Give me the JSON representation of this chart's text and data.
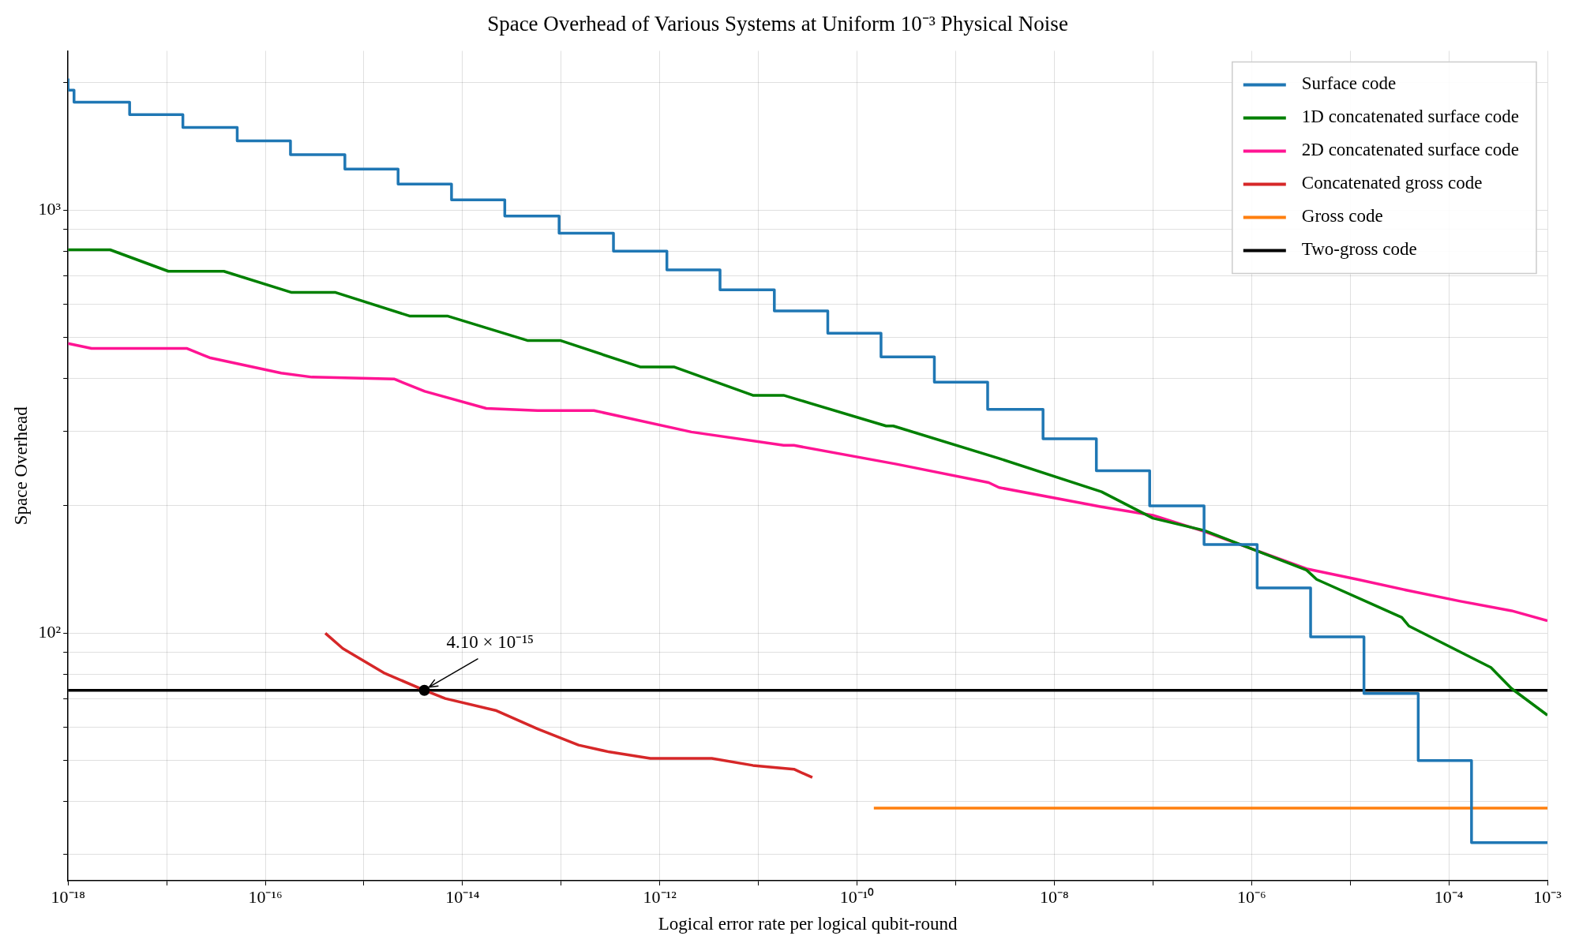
{
  "chart_data": {
    "type": "line",
    "title": "Space Overhead of Various Systems at Uniform 10⁻³ Physical Noise",
    "xlabel": "Logical error rate per logical qubit-round",
    "ylabel": "Space Overhead",
    "log": "xy",
    "grid": true,
    "legend": "top right",
    "marker": "none",
    "line_style": "solid",
    "xlim": [
      1e-18,
      0.001
    ],
    "ylim": [
      26,
      2380
    ],
    "xticks": [
      {
        "value": 1e-18,
        "label": "10⁻¹⁸"
      },
      {
        "value": 1e-17,
        "label": null
      },
      {
        "value": 1e-16,
        "label": "10⁻¹⁶"
      },
      {
        "value": 1e-15,
        "label": null
      },
      {
        "value": 1e-14,
        "label": "10⁻¹⁴"
      },
      {
        "value": 1e-13,
        "label": null
      },
      {
        "value": 1e-12,
        "label": "10⁻¹²"
      },
      {
        "value": 1e-11,
        "label": null
      },
      {
        "value": 1e-10,
        "label": "10⁻¹⁰"
      },
      {
        "value": 1e-09,
        "label": null
      },
      {
        "value": 1e-08,
        "label": "10⁻⁸"
      },
      {
        "value": 1e-07,
        "label": null
      },
      {
        "value": 1e-06,
        "label": "10⁻⁶"
      },
      {
        "value": 1e-05,
        "label": null
      },
      {
        "value": 0.0001,
        "label": "10⁻⁴"
      },
      {
        "value": 0.001,
        "label": "10⁻³"
      }
    ],
    "yticks": [
      {
        "value": 30,
        "label": null
      },
      {
        "value": 40,
        "label": null
      },
      {
        "value": 50,
        "label": null
      },
      {
        "value": 60,
        "label": null
      },
      {
        "value": 70,
        "label": null
      },
      {
        "value": 80,
        "label": null
      },
      {
        "value": 90,
        "label": null
      },
      {
        "value": 100,
        "label": "10²"
      },
      {
        "value": 200,
        "label": null
      },
      {
        "value": 300,
        "label": null
      },
      {
        "value": 400,
        "label": null
      },
      {
        "value": 500,
        "label": null
      },
      {
        "value": 600,
        "label": null
      },
      {
        "value": 700,
        "label": null
      },
      {
        "value": 800,
        "label": null
      },
      {
        "value": 900,
        "label": null
      },
      {
        "value": 1000,
        "label": "10³"
      },
      {
        "value": 2000,
        "label": null
      }
    ],
    "series": [
      {
        "name": "Surface code",
        "type": "step",
        "color": "#1f77b4",
        "x": [
          1e-18,
          1.15e-18,
          4.21e-18,
          1.46e-17,
          5.19e-17,
          1.8e-16,
          6.41e-16,
          2.22e-15,
          7.73e-15,
          2.68e-14,
          9.53e-14,
          3.39e-13,
          1.18e-12,
          4.08e-12,
          1.45e-11,
          5.05e-11,
          1.75e-10,
          6.08e-10,
          2.11e-09,
          7.69e-09,
          2.67e-08,
          9.27e-08,
          3.3e-07,
          1.14e-06,
          3.97e-06,
          1.38e-05,
          4.9e-05,
          0.00017,
          0.000577,
          0.001
        ],
        "values": [
          2048,
          1922,
          1800,
          1682,
          1568,
          1458,
          1352,
          1250,
          1152,
          1058,
          968,
          882,
          800,
          722,
          648,
          578,
          512,
          450,
          392,
          338,
          288,
          242,
          200,
          162,
          128,
          98,
          72,
          50,
          32,
          32
        ]
      },
      {
        "name": "1D concatenated surface code",
        "color": "#008000",
        "x": [
          1e-18,
          2.67e-18,
          1.04e-17,
          3.8e-17,
          1.85e-16,
          5.16e-16,
          2.9e-15,
          7.01e-15,
          4.54e-14,
          9.77e-14,
          6.31e-13,
          1.39e-12,
          8.79e-12,
          1.8e-11,
          1.97e-10,
          2.33e-10,
          2.75e-09,
          3.01e-08,
          1e-07,
          3.3e-07,
          3.61e-06,
          4.58e-06,
          3.34e-05,
          3.94e-05,
          0.000267,
          0.000433,
          0.001
        ],
        "values": [
          806,
          806,
          717,
          717,
          639,
          639,
          562,
          562,
          492,
          492,
          426,
          426,
          365,
          365,
          309,
          309,
          259,
          216,
          187,
          175,
          141,
          134,
          109,
          104,
          83,
          74,
          64
        ]
      },
      {
        "name": "2D concatenated surface code",
        "color": "#ff1493",
        "x": [
          1e-18,
          1.73e-18,
          1.61e-17,
          2.72e-17,
          1.45e-16,
          2.98e-16,
          2.02e-15,
          4.14e-15,
          1.74e-14,
          5.77e-14,
          2.15e-13,
          2.09e-12,
          1.8e-11,
          2.29e-11,
          2.51e-10,
          2.16e-09,
          2.75e-09,
          3.01e-08,
          1e-07,
          3.3e-07,
          3.61e-06,
          1.19e-05,
          3.95e-05,
          0.000131,
          0.000433,
          0.001
        ],
        "values": [
          484,
          471,
          471,
          448,
          412,
          403,
          399,
          373,
          340,
          336,
          336,
          299,
          278,
          278,
          251,
          227,
          221,
          199,
          190,
          174,
          142,
          134,
          126,
          119,
          113,
          107
        ]
      },
      {
        "name": "Concatenated gross code",
        "color": "#d62728",
        "x": [
          4.06e-16,
          6.11e-16,
          1.59e-15,
          4.1e-15,
          6.68e-15,
          2.21e-14,
          5.77e-14,
          1.5e-13,
          3.08e-13,
          8.02e-13,
          3.37e-12,
          8.79e-12,
          2.29e-11,
          3.52e-11
        ],
        "values": [
          100,
          92,
          80.6,
          73.3,
          70.1,
          65.6,
          59.4,
          54.4,
          52.4,
          50.6,
          50.6,
          48.7,
          47.7,
          45.6
        ]
      },
      {
        "name": "Gross code",
        "color": "#ff7f0e",
        "x": [
          1.48e-10,
          0.001
        ],
        "values": [
          38.6,
          38.6
        ]
      },
      {
        "name": "Two-gross code",
        "color": "#000000",
        "x": [
          1e-18,
          0.001
        ],
        "values": [
          73.3,
          73.3
        ]
      }
    ],
    "annotations": [
      {
        "text": "4.10 × 10⁻¹⁵",
        "x": 4.1e-15,
        "y": 73.3
      }
    ]
  }
}
